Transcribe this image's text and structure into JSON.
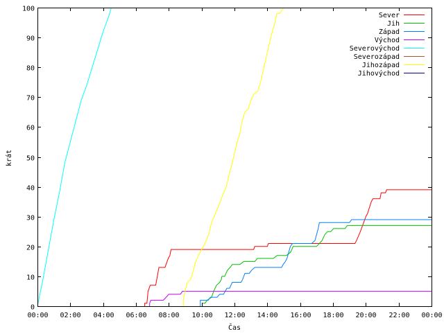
{
  "chart_data": {
    "type": "line",
    "title": "",
    "xlabel": "Čas",
    "ylabel": "krát",
    "xlim": [
      0,
      1440
    ],
    "ylim": [
      0,
      100
    ],
    "grid": false,
    "legend_position": "top-right",
    "x_ticks": [
      {
        "value": 0,
        "label": "00:00"
      },
      {
        "value": 120,
        "label": "02:00"
      },
      {
        "value": 240,
        "label": "04:00"
      },
      {
        "value": 360,
        "label": "06:00"
      },
      {
        "value": 480,
        "label": "08:00"
      },
      {
        "value": 600,
        "label": "10:00"
      },
      {
        "value": 720,
        "label": "12:00"
      },
      {
        "value": 840,
        "label": "14:00"
      },
      {
        "value": 960,
        "label": "16:00"
      },
      {
        "value": 1080,
        "label": "18:00"
      },
      {
        "value": 1200,
        "label": "20:00"
      },
      {
        "value": 1320,
        "label": "22:00"
      },
      {
        "value": 1440,
        "label": "00:00"
      }
    ],
    "y_ticks": [
      0,
      10,
      20,
      30,
      40,
      50,
      60,
      70,
      80,
      90,
      100
    ],
    "x_unit": "minutes since 00:00",
    "series": [
      {
        "name": "Sever",
        "color": "#ff0000",
        "points": [
          [
            392,
            0
          ],
          [
            392,
            1
          ],
          [
            400,
            1
          ],
          [
            404,
            5
          ],
          [
            412,
            7
          ],
          [
            432,
            7
          ],
          [
            438,
            10
          ],
          [
            444,
            13
          ],
          [
            466,
            13
          ],
          [
            470,
            14
          ],
          [
            478,
            16
          ],
          [
            484,
            17
          ],
          [
            486,
            18
          ],
          [
            488,
            19
          ],
          [
            790,
            19
          ],
          [
            794,
            20
          ],
          [
            840,
            20
          ],
          [
            844,
            21
          ],
          [
            1160,
            21
          ],
          [
            1166,
            22
          ],
          [
            1180,
            25
          ],
          [
            1192,
            28
          ],
          [
            1200,
            30
          ],
          [
            1206,
            31
          ],
          [
            1220,
            35
          ],
          [
            1226,
            36
          ],
          [
            1252,
            36
          ],
          [
            1256,
            38
          ],
          [
            1272,
            38
          ],
          [
            1276,
            39
          ],
          [
            1440,
            39
          ]
        ]
      },
      {
        "name": "Jih",
        "color": "#00c000",
        "points": [
          [
            602,
            0
          ],
          [
            602,
            1
          ],
          [
            612,
            1
          ],
          [
            620,
            2
          ],
          [
            636,
            3
          ],
          [
            644,
            5
          ],
          [
            654,
            7
          ],
          [
            666,
            8
          ],
          [
            672,
            9
          ],
          [
            674,
            10
          ],
          [
            684,
            10
          ],
          [
            694,
            12
          ],
          [
            704,
            13
          ],
          [
            712,
            14
          ],
          [
            740,
            14
          ],
          [
            754,
            15
          ],
          [
            794,
            15
          ],
          [
            804,
            16
          ],
          [
            862,
            16
          ],
          [
            876,
            17
          ],
          [
            910,
            17
          ],
          [
            924,
            18
          ],
          [
            930,
            19
          ],
          [
            934,
            20
          ],
          [
            1020,
            20
          ],
          [
            1030,
            21
          ],
          [
            1040,
            22
          ],
          [
            1050,
            24
          ],
          [
            1060,
            25
          ],
          [
            1072,
            25
          ],
          [
            1082,
            26
          ],
          [
            1124,
            26
          ],
          [
            1132,
            27
          ],
          [
            1440,
            27
          ]
        ]
      },
      {
        "name": "Západ",
        "color": "#0080ff",
        "points": [
          [
            595,
            0
          ],
          [
            595,
            2
          ],
          [
            624,
            2
          ],
          [
            632,
            3
          ],
          [
            656,
            3
          ],
          [
            666,
            4
          ],
          [
            680,
            4
          ],
          [
            692,
            6
          ],
          [
            702,
            6
          ],
          [
            712,
            8
          ],
          [
            744,
            8
          ],
          [
            750,
            9
          ],
          [
            758,
            11
          ],
          [
            774,
            11
          ],
          [
            782,
            12
          ],
          [
            794,
            13
          ],
          [
            892,
            13
          ],
          [
            898,
            14
          ],
          [
            906,
            15
          ],
          [
            912,
            16
          ],
          [
            918,
            18
          ],
          [
            924,
            20
          ],
          [
            932,
            21
          ],
          [
            1002,
            21
          ],
          [
            1014,
            22
          ],
          [
            1020,
            24
          ],
          [
            1026,
            26
          ],
          [
            1030,
            28
          ],
          [
            1140,
            28
          ],
          [
            1148,
            29
          ],
          [
            1440,
            29
          ]
        ]
      },
      {
        "name": "Východ",
        "color": "#c000ff",
        "points": [
          [
            410,
            0
          ],
          [
            410,
            1
          ],
          [
            414,
            2
          ],
          [
            460,
            2
          ],
          [
            470,
            3
          ],
          [
            480,
            4
          ],
          [
            522,
            4
          ],
          [
            530,
            5
          ],
          [
            1440,
            5
          ]
        ]
      },
      {
        "name": "Severovýchod",
        "color": "#00ffff",
        "points": [
          [
            0,
            0
          ],
          [
            20,
            9
          ],
          [
            40,
            19
          ],
          [
            60,
            29
          ],
          [
            80,
            38
          ],
          [
            100,
            48
          ],
          [
            120,
            55
          ],
          [
            140,
            62
          ],
          [
            160,
            69
          ],
          [
            180,
            74
          ],
          [
            200,
            80
          ],
          [
            220,
            86
          ],
          [
            240,
            92
          ],
          [
            260,
            97
          ],
          [
            270,
            100
          ]
        ]
      },
      {
        "name": "Severozápad",
        "color": "#b0562e",
        "points": []
      },
      {
        "name": "Jihozápad",
        "color": "#ffff00",
        "points": [
          [
            533,
            0
          ],
          [
            533,
            2
          ],
          [
            537,
            4
          ],
          [
            542,
            6
          ],
          [
            548,
            8
          ],
          [
            560,
            9
          ],
          [
            570,
            12
          ],
          [
            578,
            15
          ],
          [
            588,
            17
          ],
          [
            600,
            19
          ],
          [
            612,
            21
          ],
          [
            626,
            24
          ],
          [
            636,
            28
          ],
          [
            650,
            31
          ],
          [
            664,
            34
          ],
          [
            676,
            37
          ],
          [
            690,
            40
          ],
          [
            700,
            44
          ],
          [
            712,
            48
          ],
          [
            722,
            52
          ],
          [
            730,
            55
          ],
          [
            740,
            58
          ],
          [
            748,
            62
          ],
          [
            758,
            65
          ],
          [
            770,
            66
          ],
          [
            780,
            69
          ],
          [
            790,
            71
          ],
          [
            805,
            72
          ],
          [
            815,
            75
          ],
          [
            825,
            79
          ],
          [
            835,
            83
          ],
          [
            845,
            87
          ],
          [
            855,
            91
          ],
          [
            865,
            94
          ],
          [
            875,
            98
          ],
          [
            885,
            98
          ],
          [
            900,
            100
          ]
        ]
      },
      {
        "name": "Jihovýchod",
        "color": "#0000a0",
        "points": []
      }
    ]
  }
}
